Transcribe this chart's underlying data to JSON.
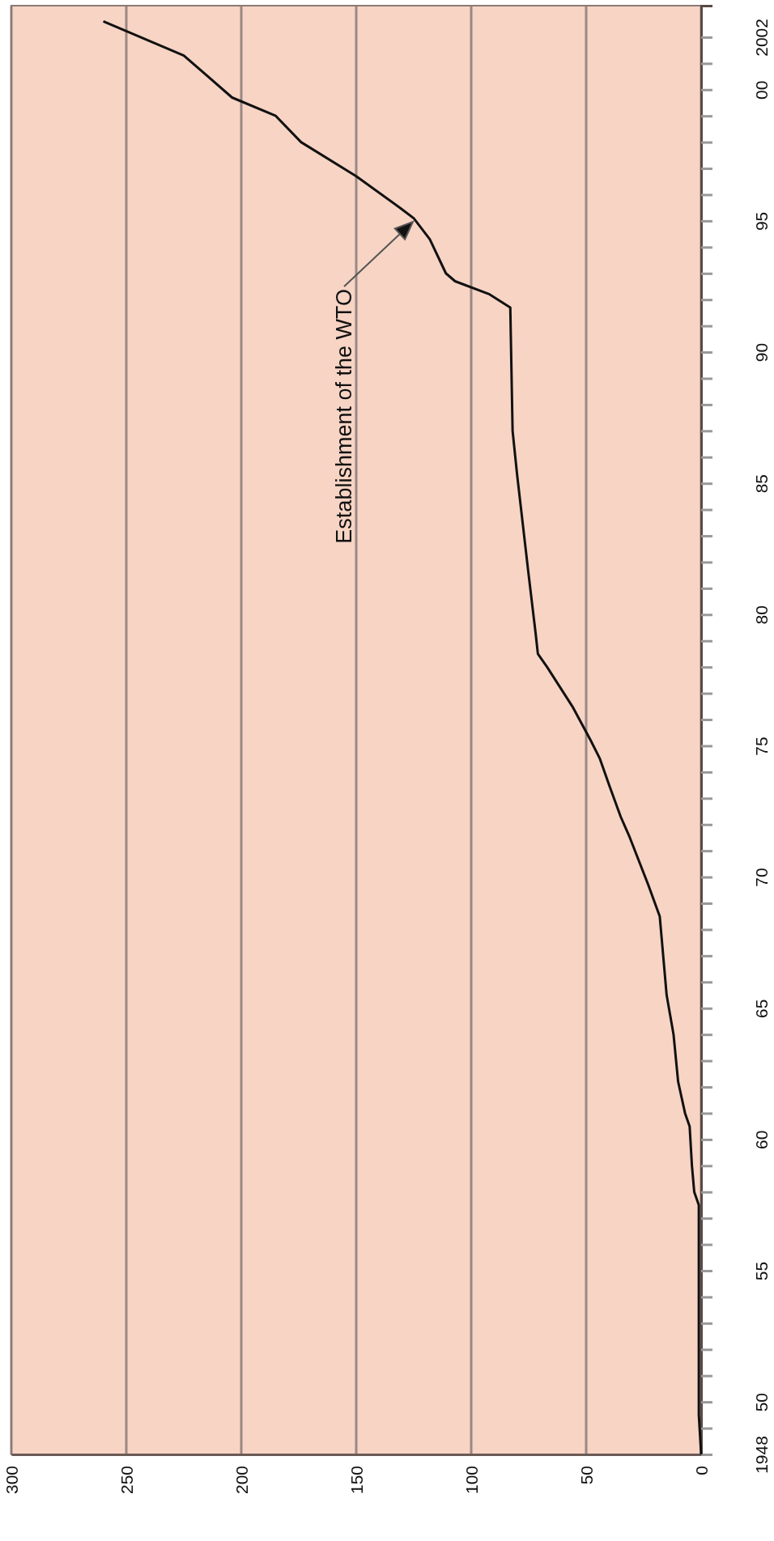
{
  "chart_data": {
    "type": "line",
    "x": [
      0,
      1,
      1,
      3,
      4,
      5,
      7,
      10,
      12,
      15,
      18,
      23,
      31,
      35,
      40,
      44,
      48,
      56,
      67,
      71,
      72,
      75,
      80,
      82,
      83,
      92,
      107,
      111,
      118,
      125,
      131,
      150,
      174,
      185,
      204,
      225,
      260
    ],
    "series": [
      {
        "color": "#111111",
        "values": [
          1948,
          1949.5,
          1957.5,
          1958,
          1959,
          1960.5,
          1961,
          1962.2,
          1964,
          1965.5,
          1968.5,
          1969.7,
          1971.5,
          1972.3,
          1973.5,
          1974.5,
          1975.2,
          1976.5,
          1978,
          1978.5,
          1979.3,
          1981.5,
          1985.3,
          1987,
          1991.7,
          1992.2,
          1992.7,
          1993,
          1994.3,
          1995.1,
          1995.5,
          1996.7,
          1998,
          1999,
          1999.7,
          2001.3,
          2002.6
        ]
      }
    ],
    "xlim": [
      300,
      0
    ],
    "ylim": [
      1948,
      2003.2
    ],
    "xticks": [
      0,
      50,
      100,
      150,
      200,
      250,
      300
    ],
    "yticks": [
      {
        "value": 1948,
        "label": "1948"
      },
      {
        "value": 1949,
        "label": null
      },
      {
        "value": 1950,
        "label": "50"
      },
      {
        "value": 1951,
        "label": null
      },
      {
        "value": 1952,
        "label": null
      },
      {
        "value": 1953,
        "label": null
      },
      {
        "value": 1954,
        "label": null
      },
      {
        "value": 1955,
        "label": "55"
      },
      {
        "value": 1956,
        "label": null
      },
      {
        "value": 1957,
        "label": null
      },
      {
        "value": 1958,
        "label": null
      },
      {
        "value": 1959,
        "label": null
      },
      {
        "value": 1960,
        "label": "60"
      },
      {
        "value": 1961,
        "label": null
      },
      {
        "value": 1962,
        "label": null
      },
      {
        "value": 1963,
        "label": null
      },
      {
        "value": 1964,
        "label": null
      },
      {
        "value": 1965,
        "label": "65"
      },
      {
        "value": 1966,
        "label": null
      },
      {
        "value": 1967,
        "label": null
      },
      {
        "value": 1968,
        "label": null
      },
      {
        "value": 1969,
        "label": null
      },
      {
        "value": 1970,
        "label": "70"
      },
      {
        "value": 1971,
        "label": null
      },
      {
        "value": 1972,
        "label": null
      },
      {
        "value": 1973,
        "label": null
      },
      {
        "value": 1974,
        "label": null
      },
      {
        "value": 1975,
        "label": "75"
      },
      {
        "value": 1976,
        "label": null
      },
      {
        "value": 1977,
        "label": null
      },
      {
        "value": 1978,
        "label": null
      },
      {
        "value": 1979,
        "label": null
      },
      {
        "value": 1980,
        "label": "80"
      },
      {
        "value": 1981,
        "label": null
      },
      {
        "value": 1982,
        "label": null
      },
      {
        "value": 1983,
        "label": null
      },
      {
        "value": 1984,
        "label": null
      },
      {
        "value": 1985,
        "label": "85"
      },
      {
        "value": 1986,
        "label": null
      },
      {
        "value": 1987,
        "label": null
      },
      {
        "value": 1988,
        "label": null
      },
      {
        "value": 1989,
        "label": null
      },
      {
        "value": 1990,
        "label": "90"
      },
      {
        "value": 1991,
        "label": null
      },
      {
        "value": 1992,
        "label": null
      },
      {
        "value": 1993,
        "label": null
      },
      {
        "value": 1994,
        "label": null
      },
      {
        "value": 1995,
        "label": "95"
      },
      {
        "value": 1996,
        "label": null
      },
      {
        "value": 1997,
        "label": null
      },
      {
        "value": 1998,
        "label": null
      },
      {
        "value": 1999,
        "label": null
      },
      {
        "value": 2000,
        "label": "00"
      },
      {
        "value": 2001,
        "label": null
      },
      {
        "value": 2002,
        "label": "2002"
      }
    ],
    "grid": "x",
    "marker": "none",
    "line_style": "solid",
    "annotations": [
      "Establishment of the WTO"
    ]
  }
}
